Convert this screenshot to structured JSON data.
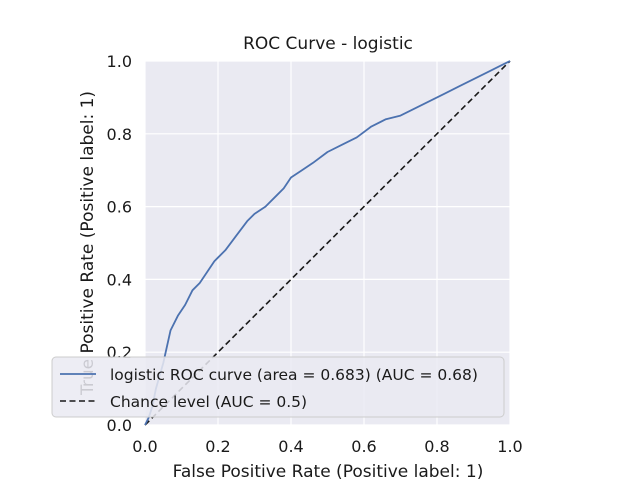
{
  "chart_data": {
    "type": "line",
    "title": "ROC Curve - logistic",
    "xlabel": "False Positive Rate (Positive label: 1)",
    "ylabel": "True Positive Rate (Positive label: 1)",
    "xlim": [
      0.0,
      1.0
    ],
    "ylim": [
      0.0,
      1.0
    ],
    "xticks": [
      "0.0",
      "0.2",
      "0.4",
      "0.6",
      "0.8",
      "1.0"
    ],
    "yticks": [
      "0.0",
      "0.2",
      "0.4",
      "0.6",
      "0.8",
      "1.0"
    ],
    "grid": true,
    "legend_position": "lower-left",
    "series": [
      {
        "name": "logistic ROC curve (area = 0.683) (AUC = 0.68)",
        "style": "solid",
        "color": "#4c72b0",
        "x": [
          0.0,
          0.01,
          0.02,
          0.03,
          0.05,
          0.07,
          0.09,
          0.11,
          0.13,
          0.15,
          0.17,
          0.19,
          0.2,
          0.22,
          0.25,
          0.28,
          0.3,
          0.33,
          0.36,
          0.38,
          0.4,
          0.43,
          0.46,
          0.5,
          0.54,
          0.58,
          0.62,
          0.66,
          0.7,
          0.74,
          0.78,
          0.82,
          0.86,
          0.9,
          0.94,
          0.97,
          1.0
        ],
        "y": [
          0.0,
          0.02,
          0.05,
          0.1,
          0.17,
          0.26,
          0.3,
          0.33,
          0.37,
          0.39,
          0.42,
          0.45,
          0.46,
          0.48,
          0.52,
          0.56,
          0.58,
          0.6,
          0.63,
          0.65,
          0.68,
          0.7,
          0.72,
          0.75,
          0.77,
          0.79,
          0.82,
          0.84,
          0.85,
          0.87,
          0.89,
          0.91,
          0.93,
          0.95,
          0.97,
          0.985,
          1.0
        ]
      },
      {
        "name": "Chance level (AUC = 0.5)",
        "style": "dashed",
        "color": "#1a1a1a",
        "x": [
          0.0,
          1.0
        ],
        "y": [
          0.0,
          1.0
        ]
      }
    ],
    "colors": {
      "plot_background": "#eaeaf2",
      "grid": "#ffffff",
      "roc": "#4c72b0",
      "chance": "#1a1a1a"
    }
  }
}
